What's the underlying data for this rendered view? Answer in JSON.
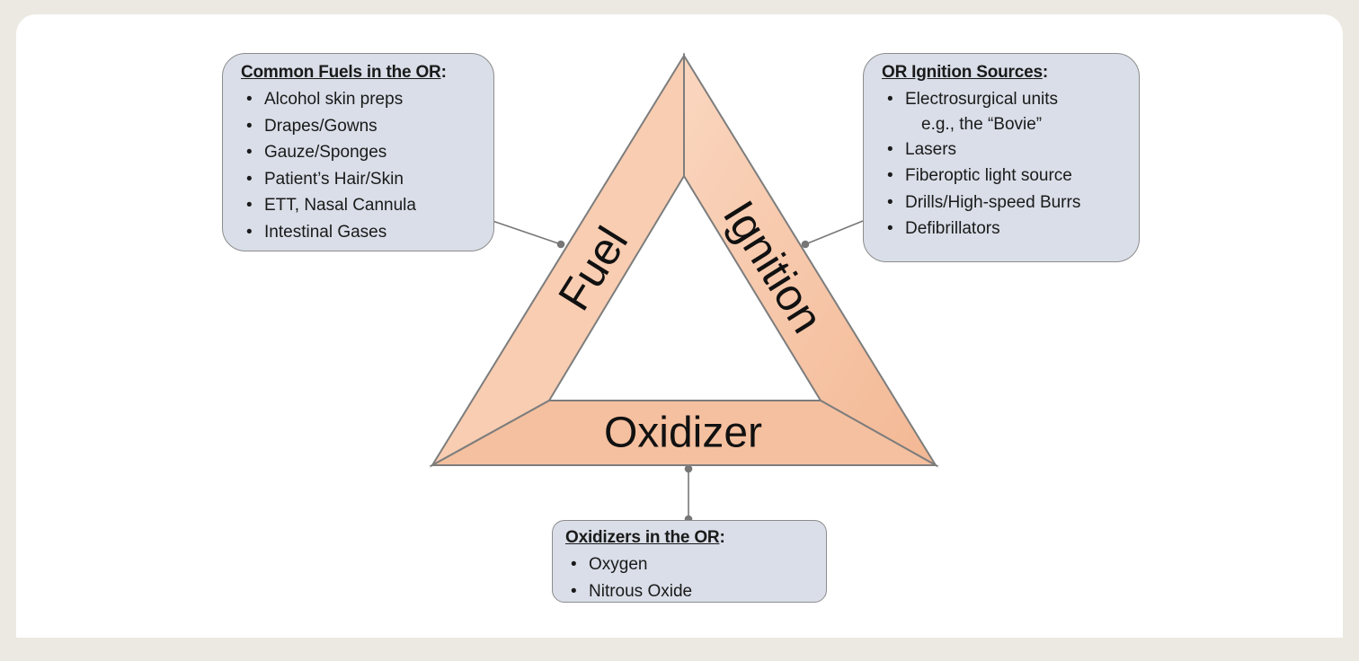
{
  "triangle": {
    "sides": {
      "fuel": "Fuel",
      "ignition": "Ignition",
      "oxidizer": "Oxidizer"
    },
    "fill_color": "#f6c4a4",
    "stroke_color": "#7a7a7a"
  },
  "boxes": {
    "fuels": {
      "title": "Common Fuels in the OR",
      "title_suffix": ":",
      "items": [
        "Alcohol skin preps",
        "Drapes/Gowns",
        "Gauze/Sponges",
        "Patient’s Hair/Skin",
        "ETT, Nasal Cannula",
        "Intestinal Gases"
      ]
    },
    "ignition": {
      "title": "OR Ignition Sources",
      "title_suffix": ":",
      "items": [
        "Electrosurgical units",
        "e.g., the “Bovie”",
        "Lasers",
        "Fiberoptic light source",
        "Drills/High-speed Burrs",
        "Defibrillators"
      ]
    },
    "oxidizers": {
      "title": "Oxidizers in the OR",
      "title_suffix": ":",
      "items": [
        "Oxygen",
        "Nitrous Oxide"
      ]
    }
  },
  "colors": {
    "box_fill": "#d9dee8",
    "page_background": "#ece9e3"
  }
}
